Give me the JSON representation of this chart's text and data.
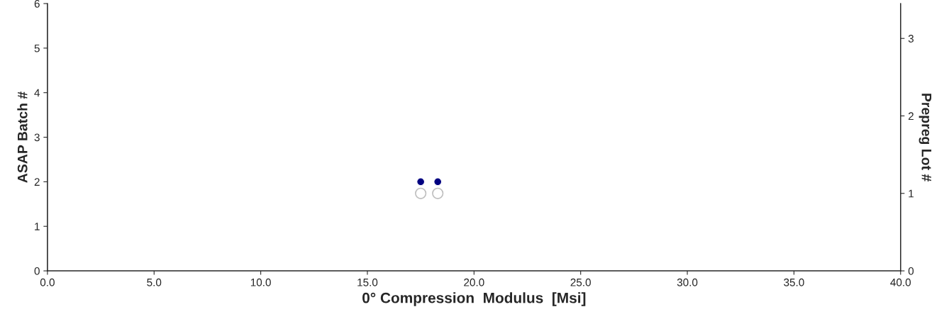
{
  "chart_data": {
    "type": "scatter",
    "xlabel": "0° Compression  Modulus  [Msi]",
    "ylabel": "ASAP Batch #",
    "y2label": "Prepreg Lot #",
    "series": [
      {
        "color": "#000080",
        "values": [
          2,
          2
        ],
        "axis": "y"
      },
      {
        "color": "#c0c0c0",
        "values": [
          1,
          1
        ],
        "axis": "y2"
      }
    ],
    "x": [
      17.5,
      18.3
    ],
    "xlim": [
      0,
      40
    ],
    "xticks": [
      {
        "value": 0,
        "label": "0.0"
      },
      {
        "value": 5,
        "label": "5.0"
      },
      {
        "value": 10,
        "label": "10.0"
      },
      {
        "value": 15,
        "label": "15.0"
      },
      {
        "value": 20,
        "label": "20.0"
      },
      {
        "value": 25,
        "label": "25.0"
      },
      {
        "value": 30,
        "label": "30.0"
      },
      {
        "value": 35,
        "label": "35.0"
      },
      {
        "value": 40,
        "label": "40.0"
      }
    ],
    "ylim": [
      0,
      6
    ],
    "yticks": [
      0,
      1,
      2,
      3,
      4,
      5,
      6
    ],
    "y2lim": [
      0,
      3.45
    ],
    "y2ticks": [
      0,
      1,
      2,
      3
    ],
    "marker": "circle",
    "grid": false,
    "legend": false
  }
}
